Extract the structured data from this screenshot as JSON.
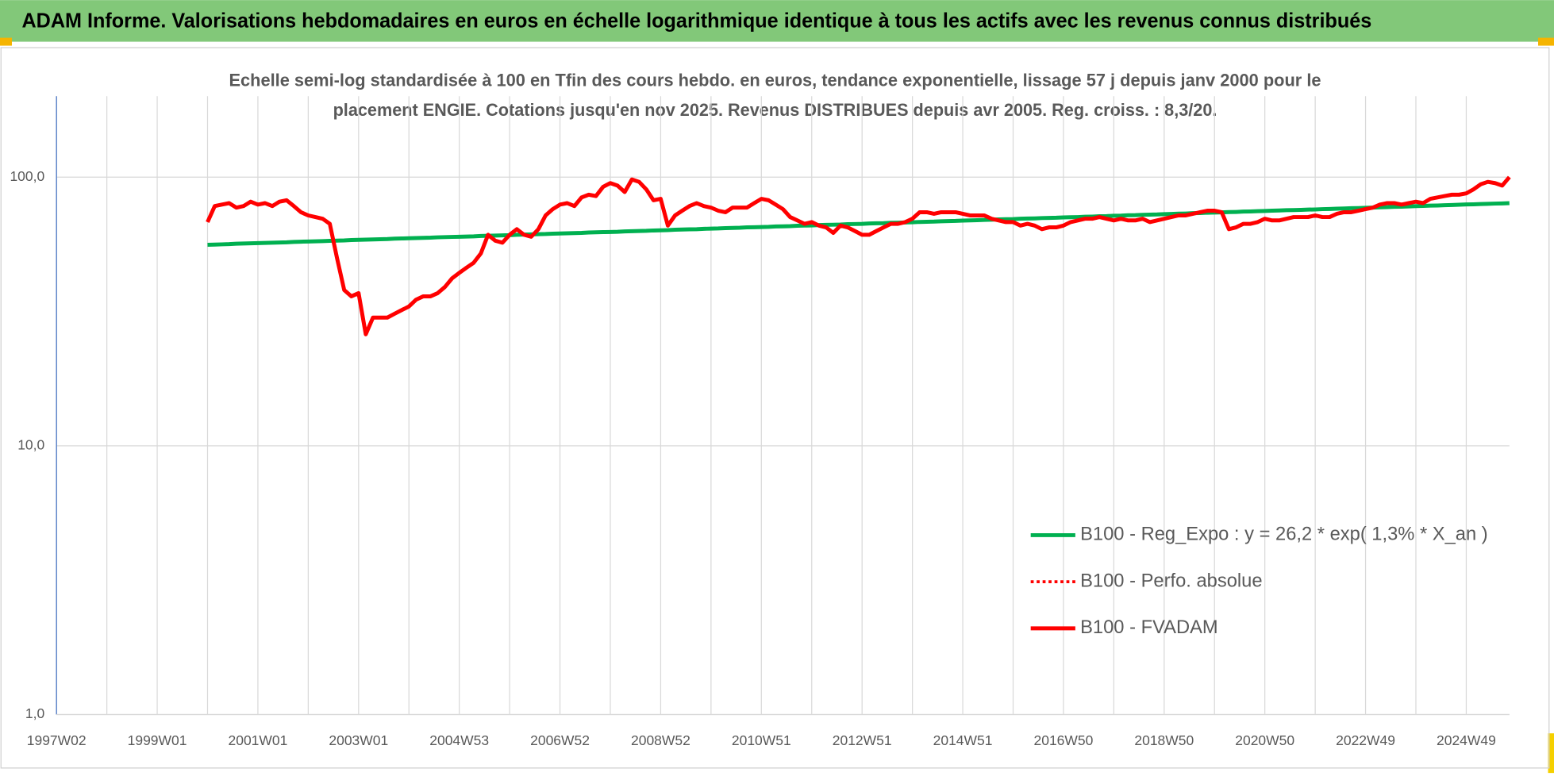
{
  "banner": "ADAM Informe. Valorisations hebdomadaires en euros en échelle logarithmique identique à tous les actifs avec les revenus connus distribués",
  "chart_data": {
    "type": "line",
    "title": [
      "Echelle semi-log standardisée à 100 en Tfin des cours hebdo. en euros, tendance exponentielle, lissage 57 j depuis janv 2000 pour le",
      "placement ENGIE. Cotations jusqu'en nov 2025.  Revenus DISTRIBUES depuis avr 2005. Reg. croiss. : 8,3/20."
    ],
    "yscale": "log",
    "ylim": [
      1,
      200
    ],
    "yticks": [
      {
        "value": 1,
        "label": "1,0"
      },
      {
        "value": 10,
        "label": "10,0"
      },
      {
        "value": 100,
        "label": "100,0"
      }
    ],
    "grid": true,
    "legend": "lower-right",
    "categories": [
      "1997W02",
      null,
      null,
      null,
      null,
      null,
      null,
      null,
      null,
      null,
      null,
      null,
      null,
      null,
      "1999W01",
      null,
      null,
      null,
      null,
      null,
      null,
      null,
      null,
      null,
      null,
      null,
      null,
      null,
      "2001W01",
      null,
      null,
      null,
      null,
      null,
      null,
      null,
      null,
      null,
      null,
      null,
      null,
      null,
      "2003W01",
      null,
      null,
      null,
      null,
      null,
      null,
      null,
      null,
      null,
      null,
      null,
      null,
      null,
      "2004W53",
      null,
      null,
      null,
      null,
      null,
      null,
      null,
      null,
      null,
      null,
      null,
      null,
      null,
      "2006W52",
      null,
      null,
      null,
      null,
      null,
      null,
      null,
      null,
      null,
      null,
      null,
      null,
      null,
      "2008W52",
      null,
      null,
      null,
      null,
      null,
      null,
      null,
      null,
      null,
      null,
      null,
      null,
      null,
      "2010W51",
      null,
      null,
      null,
      null,
      null,
      null,
      null,
      null,
      null,
      null,
      null,
      null,
      null,
      "2012W51",
      null,
      null,
      null,
      null,
      null,
      null,
      null,
      null,
      null,
      null,
      null,
      null,
      null,
      "2014W51",
      null,
      null,
      null,
      null,
      null,
      null,
      null,
      null,
      null,
      null,
      null,
      null,
      null,
      "2016W50",
      null,
      null,
      null,
      null,
      null,
      null,
      null,
      null,
      null,
      null,
      null,
      null,
      null,
      "2018W50",
      null,
      null,
      null,
      null,
      null,
      null,
      null,
      null,
      null,
      null,
      null,
      null,
      null,
      "2020W50",
      null,
      null,
      null,
      null,
      null,
      null,
      null,
      null,
      null,
      null,
      null,
      null,
      null,
      "2022W49",
      null,
      null,
      null,
      null,
      null,
      null,
      null,
      null,
      null,
      null,
      null,
      null,
      null,
      "2024W49",
      null,
      null,
      null,
      null,
      null,
      null
    ],
    "series": [
      {
        "name": "B100 - Reg_Expo : y = 26,2 * exp( 1,3% *  X_an )",
        "color": "#00b050",
        "dash": "solid",
        "values": [
          null,
          null,
          null,
          null,
          null,
          null,
          null,
          null,
          null,
          null,
          null,
          null,
          null,
          null,
          null,
          null,
          null,
          null,
          null,
          null,
          null,
          56.0,
          56.1,
          56.2,
          56.3,
          56.5,
          56.6,
          56.7,
          56.8,
          56.9,
          57.0,
          57.1,
          57.2,
          57.4,
          57.5,
          57.6,
          57.7,
          57.8,
          57.9,
          58.0,
          58.1,
          58.3,
          58.4,
          58.5,
          58.6,
          58.7,
          58.8,
          59.0,
          59.1,
          59.2,
          59.3,
          59.4,
          59.5,
          59.7,
          59.8,
          59.9,
          60.0,
          60.1,
          60.2,
          60.4,
          60.5,
          60.6,
          60.7,
          60.8,
          61.0,
          61.1,
          61.2,
          61.3,
          61.4,
          61.6,
          61.7,
          61.8,
          61.9,
          62.0,
          62.2,
          62.3,
          62.4,
          62.5,
          62.6,
          62.8,
          62.9,
          63.0,
          63.1,
          63.3,
          63.4,
          63.5,
          63.7,
          63.8,
          63.9,
          64.0,
          64.2,
          64.3,
          64.4,
          64.6,
          64.7,
          64.8,
          65.0,
          65.1,
          65.2,
          65.3,
          65.5,
          65.6,
          65.7,
          65.9,
          66.0,
          66.1,
          66.3,
          66.4,
          66.5,
          66.6,
          66.8,
          66.9,
          67.0,
          67.2,
          67.3,
          67.4,
          67.6,
          67.7,
          67.8,
          67.9,
          68.1,
          68.2,
          68.3,
          68.5,
          68.6,
          68.7,
          68.9,
          69.0,
          69.1,
          69.3,
          69.4,
          69.6,
          69.7,
          69.8,
          70.0,
          70.1,
          70.2,
          70.4,
          70.5,
          70.6,
          70.8,
          70.9,
          71.0,
          71.2,
          71.3,
          71.5,
          71.6,
          71.8,
          71.9,
          72.1,
          72.2,
          72.4,
          72.5,
          72.6,
          72.8,
          72.9,
          73.1,
          73.2,
          73.4,
          73.5,
          73.7,
          73.8,
          73.9,
          74.1,
          74.2,
          74.4,
          74.5,
          74.7,
          74.8,
          75.0,
          75.1,
          75.3,
          75.4,
          75.5,
          75.7,
          75.8,
          76.0,
          76.1,
          76.3,
          76.4,
          76.6,
          76.7,
          76.9,
          77.0,
          77.2,
          77.3,
          77.5,
          77.6,
          77.8,
          78.0,
          78.1,
          78.3,
          78.4,
          78.6,
          78.7,
          78.9,
          79.1,
          79.2,
          79.4,
          79.5,
          79.7,
          79.8,
          80.0
        ]
      },
      {
        "name": "B100 - Perfo. absolue",
        "color": "#ff0000",
        "dash": "dotted",
        "values": [
          null,
          null,
          null,
          null,
          null,
          null,
          null,
          null,
          null,
          null,
          null,
          null,
          null,
          null,
          null,
          null,
          null,
          null,
          null,
          null,
          null,
          68,
          78,
          79,
          80,
          77,
          78,
          81,
          79,
          80,
          78,
          81,
          82,
          78,
          74,
          72,
          71,
          70,
          67,
          50,
          38,
          36,
          37,
          26,
          30,
          30,
          30,
          31,
          32,
          33,
          35,
          36,
          36,
          37,
          39,
          42,
          44,
          46,
          48,
          52,
          61,
          58,
          57,
          61,
          64,
          61,
          60,
          64,
          72,
          76,
          79,
          80,
          78,
          84,
          86,
          85,
          92,
          95,
          93,
          88,
          98,
          96,
          90,
          82,
          83,
          66,
          72,
          75,
          78,
          80,
          78,
          77,
          75,
          74,
          77,
          77,
          77,
          80,
          83,
          82,
          79,
          76,
          71,
          69,
          67,
          68,
          66,
          65,
          62,
          66,
          65,
          63,
          61,
          61,
          63,
          65,
          67,
          67,
          68,
          70,
          74,
          74,
          73,
          74,
          74,
          74,
          73,
          72,
          72,
          72,
          70,
          69,
          68,
          68,
          66,
          67,
          66,
          64,
          65,
          65,
          66,
          68,
          69,
          70,
          70,
          71,
          70,
          69,
          70,
          69,
          69,
          70,
          68,
          69,
          70,
          71,
          72,
          72,
          73,
          74,
          75,
          75,
          74,
          64,
          65,
          67,
          67,
          68,
          70,
          69,
          69,
          70,
          71,
          71,
          71,
          72,
          71,
          71,
          73,
          74,
          74,
          75,
          76,
          77,
          79,
          80,
          80,
          79,
          80,
          81,
          80,
          83,
          84,
          85,
          86,
          86,
          87,
          90,
          94,
          96,
          95,
          93,
          100
        ]
      },
      {
        "name": "B100 - FVADAM",
        "color": "#ff0000",
        "dash": "solid",
        "values": [
          null,
          null,
          null,
          null,
          null,
          null,
          null,
          null,
          null,
          null,
          null,
          null,
          null,
          null,
          null,
          null,
          null,
          null,
          null,
          null,
          null,
          68,
          78,
          79,
          80,
          77,
          78,
          81,
          79,
          80,
          78,
          81,
          82,
          78,
          74,
          72,
          71,
          70,
          67,
          50,
          38,
          36,
          37,
          26,
          30,
          30,
          30,
          31,
          32,
          33,
          35,
          36,
          36,
          37,
          39,
          42,
          44,
          46,
          48,
          52,
          61,
          58,
          57,
          61,
          64,
          61,
          60,
          64,
          72,
          76,
          79,
          80,
          78,
          84,
          86,
          85,
          92,
          95,
          93,
          88,
          98,
          96,
          90,
          82,
          83,
          66,
          72,
          75,
          78,
          80,
          78,
          77,
          75,
          74,
          77,
          77,
          77,
          80,
          83,
          82,
          79,
          76,
          71,
          69,
          67,
          68,
          66,
          65,
          62,
          66,
          65,
          63,
          61,
          61,
          63,
          65,
          67,
          67,
          68,
          70,
          74,
          74,
          73,
          74,
          74,
          74,
          73,
          72,
          72,
          72,
          70,
          69,
          68,
          68,
          66,
          67,
          66,
          64,
          65,
          65,
          66,
          68,
          69,
          70,
          70,
          71,
          70,
          69,
          70,
          69,
          69,
          70,
          68,
          69,
          70,
          71,
          72,
          72,
          73,
          74,
          75,
          75,
          74,
          64,
          65,
          67,
          67,
          68,
          70,
          69,
          69,
          70,
          71,
          71,
          71,
          72,
          71,
          71,
          73,
          74,
          74,
          75,
          76,
          77,
          79,
          80,
          80,
          79,
          80,
          81,
          80,
          83,
          84,
          85,
          86,
          86,
          87,
          90,
          94,
          96,
          95,
          93,
          100
        ]
      }
    ]
  }
}
